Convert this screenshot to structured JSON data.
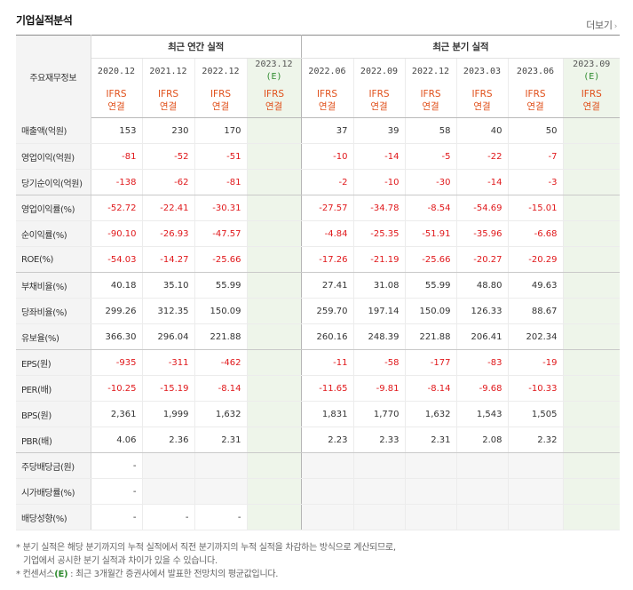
{
  "title": "기업실적분석",
  "more_label": "더보기",
  "more_icon": "chevron-right-icon",
  "header": {
    "corner": "주요재무정보",
    "annual_group": "최근 연간 실적",
    "quarter_group": "최근 분기 실적",
    "annual_periods": [
      "2020.12",
      "2021.12",
      "2022.12",
      "2023.12"
    ],
    "annual_estimate_mark": "(E)",
    "quarter_periods": [
      "2022.06",
      "2022.09",
      "2022.12",
      "2023.03",
      "2023.06",
      "2023.09"
    ],
    "quarter_estimate_mark": "(E)",
    "ifrs_top": "IFRS",
    "ifrs_bottom": "연결"
  },
  "rows": [
    {
      "label": "매출액(억원)",
      "values": [
        "153",
        "230",
        "170",
        "",
        "37",
        "39",
        "58",
        "40",
        "50",
        ""
      ]
    },
    {
      "label": "영업이익(억원)",
      "values": [
        "-81",
        "-52",
        "-51",
        "",
        "-10",
        "-14",
        "-5",
        "-22",
        "-7",
        ""
      ]
    },
    {
      "label": "당기순이익(억원)",
      "values": [
        "-138",
        "-62",
        "-81",
        "",
        "-2",
        "-10",
        "-30",
        "-14",
        "-3",
        ""
      ]
    },
    {
      "label": "영업이익률(%)",
      "values": [
        "-52.72",
        "-22.41",
        "-30.31",
        "",
        "-27.57",
        "-34.78",
        "-8.54",
        "-54.69",
        "-15.01",
        ""
      ]
    },
    {
      "label": "순이익률(%)",
      "values": [
        "-90.10",
        "-26.93",
        "-47.57",
        "",
        "-4.84",
        "-25.35",
        "-51.91",
        "-35.96",
        "-6.68",
        ""
      ]
    },
    {
      "label": "ROE(%)",
      "values": [
        "-54.03",
        "-14.27",
        "-25.66",
        "",
        "-17.26",
        "-21.19",
        "-25.66",
        "-20.27",
        "-20.29",
        ""
      ]
    },
    {
      "label": "부채비율(%)",
      "values": [
        "40.18",
        "35.10",
        "55.99",
        "",
        "27.41",
        "31.08",
        "55.99",
        "48.80",
        "49.63",
        ""
      ]
    },
    {
      "label": "당좌비율(%)",
      "values": [
        "299.26",
        "312.35",
        "150.09",
        "",
        "259.70",
        "197.14",
        "150.09",
        "126.33",
        "88.67",
        ""
      ]
    },
    {
      "label": "유보율(%)",
      "values": [
        "366.30",
        "296.04",
        "221.88",
        "",
        "260.16",
        "248.39",
        "221.88",
        "206.41",
        "202.34",
        ""
      ]
    },
    {
      "label": "EPS(원)",
      "values": [
        "-935",
        "-311",
        "-462",
        "",
        "-11",
        "-58",
        "-177",
        "-83",
        "-19",
        ""
      ]
    },
    {
      "label": "PER(배)",
      "values": [
        "-10.25",
        "-15.19",
        "-8.14",
        "",
        "-11.65",
        "-9.81",
        "-8.14",
        "-9.68",
        "-10.33",
        ""
      ]
    },
    {
      "label": "BPS(원)",
      "values": [
        "2,361",
        "1,999",
        "1,632",
        "",
        "1,831",
        "1,770",
        "1,632",
        "1,543",
        "1,505",
        ""
      ]
    },
    {
      "label": "PBR(배)",
      "values": [
        "4.06",
        "2.36",
        "2.31",
        "",
        "2.23",
        "2.33",
        "2.31",
        "2.08",
        "2.32",
        ""
      ]
    },
    {
      "label": "주당배당금(원)",
      "values": [
        "-",
        "",
        "",
        "",
        "",
        "",
        "",
        "",
        "",
        ""
      ]
    },
    {
      "label": "시가배당률(%)",
      "values": [
        "-",
        "",
        "",
        "",
        "",
        "",
        "",
        "",
        "",
        ""
      ]
    },
    {
      "label": "배당성향(%)",
      "values": [
        "-",
        "-",
        "-",
        "",
        "",
        "",
        "",
        "",
        "",
        ""
      ]
    }
  ],
  "notes": {
    "line1": "* 분기 실적은 해당 분기까지의 누적 실적에서 직전 분기까지의 누적 실적을 차감하는 방식으로 계산되므로,",
    "line2": "기업에서 공시한 분기 실적과 차이가 있을 수 있습니다.",
    "line3_prefix": "* 컨센서스",
    "line3_mark": "(E)",
    "line3_suffix": ": 최근 3개월간 증권사에서 발표한 전망치의 평균값입니다."
  },
  "colors": {
    "negative": "#e0181b",
    "ifrs": "#e0501b",
    "estimate_bg": "#eef5ea",
    "estimate_mark": "#2e8b2e",
    "label_bg": "#f4f4f4"
  }
}
